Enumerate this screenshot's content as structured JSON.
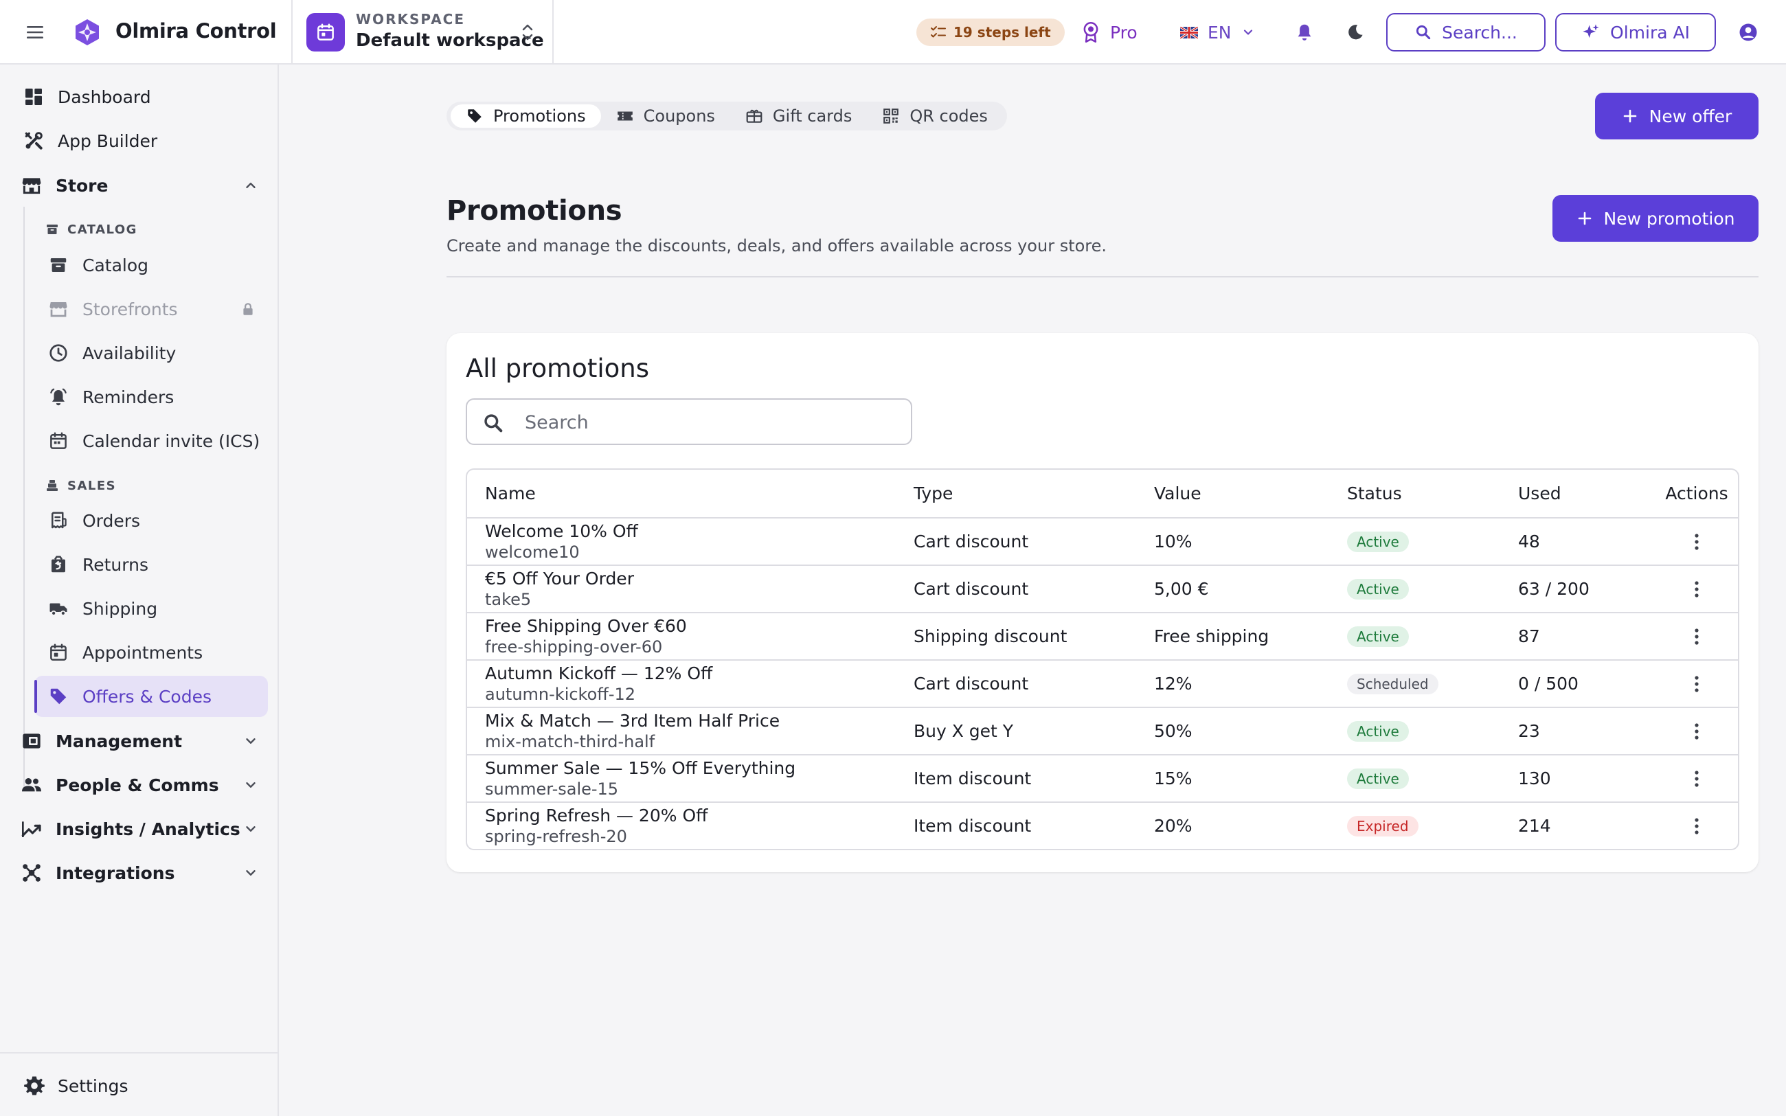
{
  "app": {
    "name": "Olmira Control",
    "workspace_label": "WORKSPACE",
    "workspace_name": "Default workspace"
  },
  "topbar": {
    "steps_left": "19 steps left",
    "plan": "Pro",
    "language": "EN",
    "search_label": "Search...",
    "ai_label": "Olmira AI"
  },
  "sidebar": {
    "dashboard": "Dashboard",
    "app_builder": "App Builder",
    "store": "Store",
    "catalog_header": "CATALOG",
    "catalog_items": [
      "Catalog",
      "Storefronts",
      "Availability",
      "Reminders",
      "Calendar invite (ICS)"
    ],
    "sales_header": "SALES",
    "sales_items": [
      "Orders",
      "Returns",
      "Shipping",
      "Appointments",
      "Offers & Codes"
    ],
    "management": "Management",
    "people": "People & Comms",
    "insights": "Insights / Analytics",
    "integrations": "Integrations",
    "settings": "Settings"
  },
  "tabs": [
    {
      "label": "Promotions",
      "icon": "tag-icon",
      "active": true
    },
    {
      "label": "Coupons",
      "icon": "ticket-icon",
      "active": false
    },
    {
      "label": "Gift cards",
      "icon": "gift-card-icon",
      "active": false
    },
    {
      "label": "QR codes",
      "icon": "qr-code-icon",
      "active": false
    }
  ],
  "actions": {
    "new_offer": "New offer",
    "new_promotion": "New promotion"
  },
  "page": {
    "title": "Promotions",
    "subtitle": "Create and manage the discounts, deals, and offers available across your store."
  },
  "card": {
    "title": "All promotions",
    "search_placeholder": "Search"
  },
  "table": {
    "columns": [
      "Name",
      "Type",
      "Value",
      "Status",
      "Used",
      "Actions"
    ],
    "rows": [
      {
        "name": "Welcome 10% Off",
        "code": "welcome10",
        "type": "Cart discount",
        "value": "10%",
        "status": "Active",
        "used": "48"
      },
      {
        "name": "€5 Off Your Order",
        "code": "take5",
        "type": "Cart discount",
        "value": "5,00 €",
        "status": "Active",
        "used": "63 / 200"
      },
      {
        "name": "Free Shipping Over €60",
        "code": "free-shipping-over-60",
        "type": "Shipping discount",
        "value": "Free shipping",
        "status": "Active",
        "used": "87"
      },
      {
        "name": "Autumn Kickoff — 12% Off",
        "code": "autumn-kickoff-12",
        "type": "Cart discount",
        "value": "12%",
        "status": "Scheduled",
        "used": "0 / 500"
      },
      {
        "name": "Mix & Match — 3rd Item Half Price",
        "code": "mix-match-third-half",
        "type": "Buy X get Y",
        "value": "50%",
        "status": "Active",
        "used": "23"
      },
      {
        "name": "Summer Sale — 15% Off Everything",
        "code": "summer-sale-15",
        "type": "Item discount",
        "value": "15%",
        "status": "Active",
        "used": "130"
      },
      {
        "name": "Spring Refresh — 20% Off",
        "code": "spring-refresh-20",
        "type": "Item discount",
        "value": "20%",
        "status": "Expired",
        "used": "214"
      }
    ]
  },
  "colors": {
    "accent": "#5b3fd9",
    "active_badge": "#1e7b3c",
    "expired_badge": "#c62828",
    "steps_badge": "#f6e4d5"
  }
}
